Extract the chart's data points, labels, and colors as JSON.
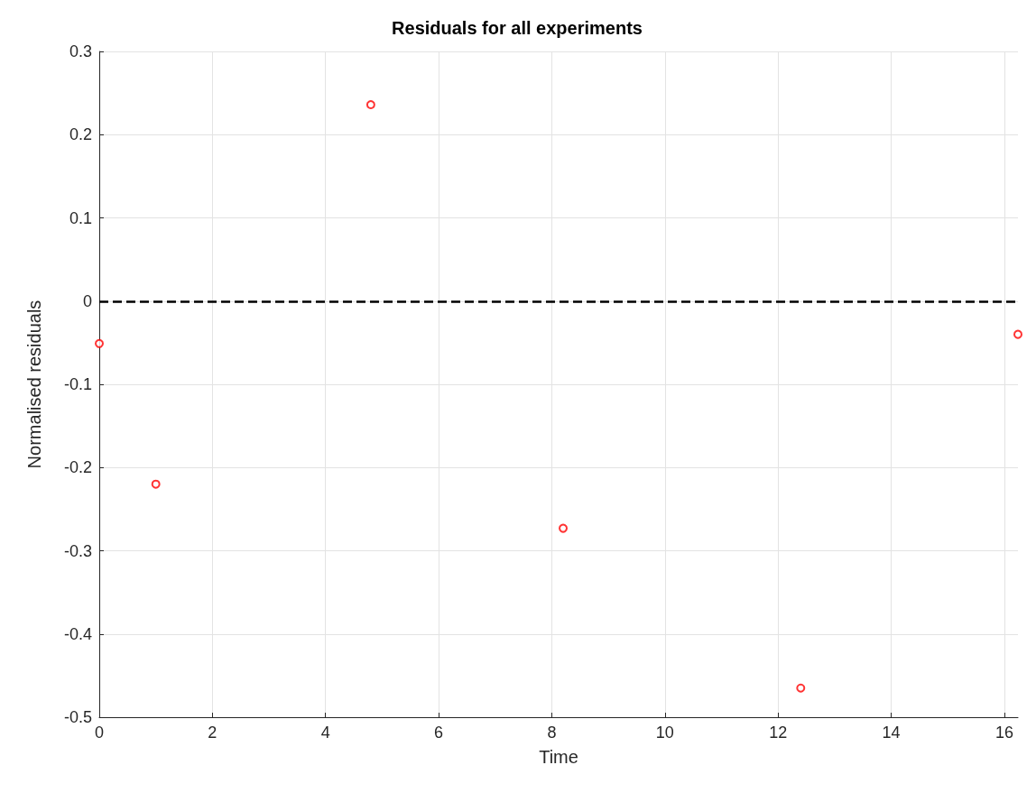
{
  "chart_data": {
    "type": "scatter",
    "title": "Residuals for all experiments",
    "xlabel": "Time",
    "ylabel": "Normalised residuals",
    "x": [
      0,
      1.0,
      4.8,
      8.2,
      12.4,
      16.24
    ],
    "series": [
      {
        "color": "#ff0000",
        "values": [
          -0.051,
          -0.22,
          0.236,
          -0.273,
          -0.465,
          -0.04
        ]
      }
    ],
    "xlim": [
      0,
      16.24
    ],
    "xticks": [
      0,
      2,
      4,
      6,
      8,
      10,
      12,
      14,
      16
    ],
    "ylim": [
      -0.5,
      0.3
    ],
    "yticks": [
      -0.5,
      -0.4,
      -0.3,
      -0.2,
      -0.1,
      0,
      0.1,
      0.2,
      0.3
    ],
    "ref_lines": [
      {
        "axis": "y",
        "value": 0,
        "color": "#000000",
        "line_style": "dashed"
      }
    ],
    "grid": true,
    "marker": "circle"
  }
}
